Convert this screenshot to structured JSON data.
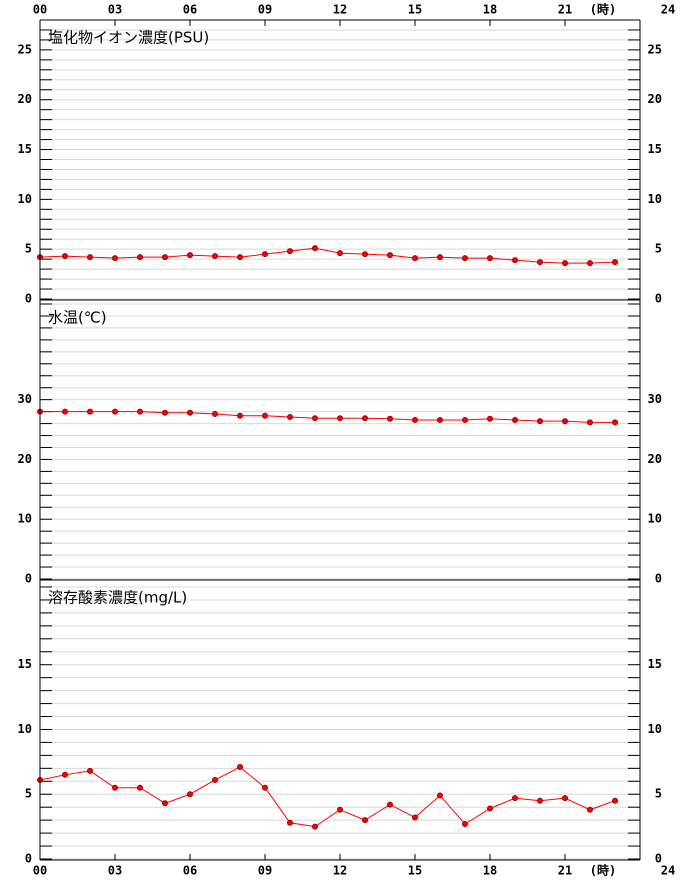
{
  "x_axis": {
    "xlim": [
      0,
      24
    ],
    "xticks": [
      {
        "value": 0,
        "label": "00"
      },
      {
        "value": 3,
        "label": "03"
      },
      {
        "value": 6,
        "label": "06"
      },
      {
        "value": 9,
        "label": "09"
      },
      {
        "value": 12,
        "label": "12"
      },
      {
        "value": 15,
        "label": "15"
      },
      {
        "value": 18,
        "label": "18"
      },
      {
        "value": 21,
        "label": "21"
      },
      24
    ],
    "unit": "(時)"
  },
  "chart_data": [
    {
      "type": "line",
      "title": "塩化物イオン濃度(PSU)",
      "color": "#ff0000",
      "x": [
        0,
        1,
        2,
        3,
        4,
        5,
        6,
        7,
        8,
        9,
        10,
        11,
        12,
        13,
        14,
        15,
        16,
        17,
        18,
        19,
        20,
        21,
        22,
        23
      ],
      "values": [
        4.2,
        4.3,
        4.2,
        4.1,
        4.2,
        4.2,
        4.4,
        4.3,
        4.2,
        4.5,
        4.8,
        5.1,
        4.6,
        4.5,
        4.4,
        4.1,
        4.2,
        4.1,
        4.1,
        3.9,
        3.7,
        3.6,
        3.6,
        3.7
      ],
      "ylim": [
        0,
        28
      ],
      "yticks": [
        0,
        5,
        10,
        15,
        20,
        25
      ],
      "minor_yticks": [
        1,
        2,
        3,
        4,
        6,
        7,
        8,
        9,
        11,
        12,
        13,
        14,
        16,
        17,
        18,
        19,
        21,
        22,
        23,
        24,
        26,
        27
      ],
      "grid": true
    },
    {
      "type": "line",
      "title": "水温(℃)",
      "color": "#ff0000",
      "x": [
        0,
        1,
        2,
        3,
        4,
        5,
        6,
        7,
        8,
        9,
        10,
        11,
        12,
        13,
        14,
        15,
        16,
        17,
        18,
        19,
        20,
        21,
        22,
        23
      ],
      "values": [
        28.0,
        28.0,
        28.0,
        28.0,
        28.0,
        27.8,
        27.8,
        27.6,
        27.3,
        27.3,
        27.1,
        26.9,
        26.9,
        26.9,
        26.8,
        26.6,
        26.6,
        26.6,
        26.8,
        26.6,
        26.4,
        26.4,
        26.2,
        26.2
      ],
      "ylim": [
        0,
        46.67
      ],
      "yticks": [
        0,
        10,
        20,
        30
      ],
      "minor_yticks": [
        2,
        4,
        6,
        8,
        12,
        14,
        16,
        18,
        22,
        24,
        26,
        28,
        32,
        34,
        36,
        38,
        40,
        42,
        44,
        46
      ],
      "grid": true
    },
    {
      "type": "line",
      "title": "溶存酸素濃度(mg/L)",
      "color": "#ff0000",
      "x": [
        0,
        1,
        2,
        3,
        4,
        5,
        6,
        7,
        8,
        9,
        10,
        11,
        12,
        13,
        14,
        15,
        16,
        17,
        18,
        19,
        20,
        21,
        22,
        23
      ],
      "values": [
        6.1,
        6.5,
        6.8,
        5.5,
        5.5,
        4.3,
        5.0,
        6.1,
        7.1,
        5.5,
        2.8,
        2.5,
        3.8,
        3.0,
        4.2,
        3.2,
        4.9,
        2.7,
        3.9,
        4.7,
        4.5,
        4.7,
        3.8,
        4.5
      ],
      "ylim": [
        0,
        21.54
      ],
      "yticks": [
        0,
        5,
        10,
        15
      ],
      "minor_yticks": [
        1,
        2,
        3,
        4,
        6,
        7,
        8,
        9,
        11,
        12,
        13,
        14,
        16,
        17,
        18,
        19,
        20,
        21
      ],
      "grid": true
    }
  ]
}
